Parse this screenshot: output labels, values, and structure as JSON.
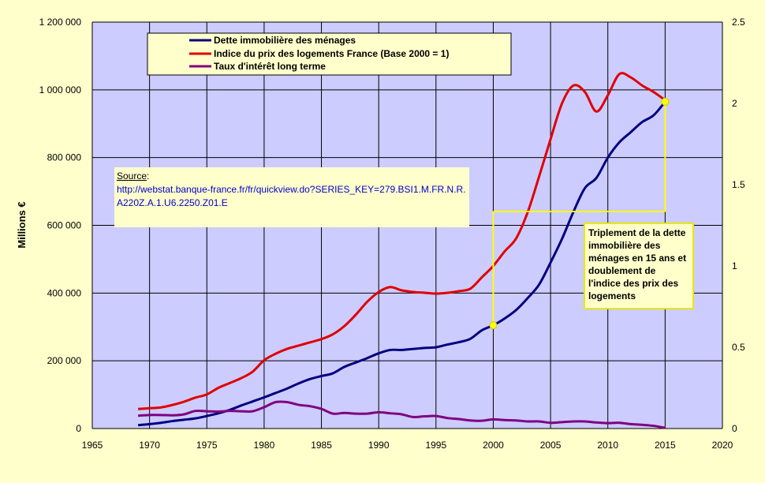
{
  "chart_data": {
    "type": "line",
    "ylabel": "Millions €",
    "xlim": [
      1965,
      2020
    ],
    "ylim_left": [
      0,
      1200000
    ],
    "ylim_right": [
      0,
      2.5
    ],
    "grid": true,
    "legend_position": "top-left",
    "x_ticks": [
      "1965",
      "1970",
      "1975",
      "1980",
      "1985",
      "1990",
      "1995",
      "2000",
      "2005",
      "2010",
      "2015",
      "2020"
    ],
    "y_ticks_left": [
      "0",
      "200 000",
      "400 000",
      "600 000",
      "800 000",
      "1 000 000",
      "1 200 000"
    ],
    "y_ticks_right": [
      "0",
      "0.5",
      "1",
      "1.5",
      "2",
      "2.5"
    ],
    "series": [
      {
        "name": "Dette immobilière des ménages",
        "color": "#000080",
        "axis": "left",
        "x": [
          1969,
          1970,
          1971,
          1972,
          1973,
          1974,
          1975,
          1976,
          1977,
          1978,
          1979,
          1980,
          1981,
          1982,
          1983,
          1984,
          1985,
          1986,
          1987,
          1988,
          1989,
          1990,
          1991,
          1992,
          1993,
          1994,
          1995,
          1996,
          1997,
          1998,
          1999,
          2000,
          2001,
          2002,
          2003,
          2004,
          2005,
          2006,
          2007,
          2008,
          2009,
          2010,
          2011,
          2012,
          2013,
          2014,
          2015
        ],
        "values": [
          10000,
          13000,
          17000,
          22000,
          26000,
          30000,
          37000,
          45000,
          55000,
          68000,
          80000,
          92000,
          105000,
          118000,
          133000,
          146000,
          155000,
          163000,
          182000,
          195000,
          208000,
          222000,
          232000,
          232000,
          235000,
          238000,
          240000,
          248000,
          255000,
          265000,
          290000,
          305000,
          325000,
          350000,
          385000,
          425000,
          490000,
          560000,
          640000,
          710000,
          740000,
          800000,
          845000,
          875000,
          905000,
          925000,
          965000
        ]
      },
      {
        "name": "Indice du prix des logements France (Base 2000 = 1)",
        "color": "#e00000",
        "axis": "right",
        "x": [
          1969,
          1970,
          1971,
          1972,
          1973,
          1974,
          1975,
          1976,
          1977,
          1978,
          1979,
          1980,
          1981,
          1982,
          1983,
          1984,
          1985,
          1986,
          1987,
          1988,
          1989,
          1990,
          1991,
          1992,
          1993,
          1994,
          1995,
          1996,
          1997,
          1998,
          1999,
          2000,
          2001,
          2002,
          2003,
          2004,
          2005,
          2006,
          2007,
          2008,
          2009,
          2010,
          2011,
          2012,
          2013,
          2014,
          2015
        ],
        "values": [
          0.12,
          0.125,
          0.13,
          0.145,
          0.165,
          0.19,
          0.21,
          0.25,
          0.28,
          0.31,
          0.35,
          0.42,
          0.46,
          0.49,
          0.51,
          0.53,
          0.55,
          0.58,
          0.63,
          0.7,
          0.78,
          0.84,
          0.87,
          0.85,
          0.84,
          0.835,
          0.83,
          0.835,
          0.845,
          0.86,
          0.93,
          1.0,
          1.09,
          1.17,
          1.33,
          1.55,
          1.78,
          2.0,
          2.11,
          2.07,
          1.95,
          2.05,
          2.18,
          2.16,
          2.11,
          2.07,
          2.02
        ]
      },
      {
        "name": "Taux d'intérêt long terme",
        "color": "#800080",
        "axis": "left",
        "x": [
          1969,
          1970,
          1971,
          1972,
          1973,
          1974,
          1975,
          1976,
          1977,
          1978,
          1979,
          1980,
          1981,
          1982,
          1983,
          1984,
          1985,
          1986,
          1987,
          1988,
          1989,
          1990,
          1991,
          1992,
          1993,
          1994,
          1995,
          1996,
          1997,
          1998,
          1999,
          2000,
          2001,
          2002,
          2003,
          2004,
          2005,
          2006,
          2007,
          2008,
          2009,
          2010,
          2011,
          2012,
          2013,
          2014,
          2015
        ],
        "values": [
          38000,
          40000,
          40000,
          39000,
          42000,
          52000,
          51000,
          50000,
          52000,
          51000,
          51000,
          63000,
          78000,
          78000,
          70000,
          66000,
          58000,
          44000,
          46000,
          44000,
          44000,
          48000,
          45000,
          42000,
          34000,
          36000,
          37000,
          31000,
          28000,
          24000,
          23000,
          27000,
          25000,
          24000,
          21000,
          21000,
          17000,
          19000,
          21000,
          21000,
          18000,
          16000,
          17000,
          13000,
          11000,
          8000,
          2000
        ]
      }
    ],
    "annotations": {
      "source_title": "Source",
      "source_colon": ":",
      "source_url": "http://webstat.banque-france.fr/fr/quickview.do?SERIES_KEY=279.BSI1.M.FR.N.R.A220Z.A.1.U6.2250.Z01.E",
      "note": "Triplement de la dette immobilière des ménages en 15 ans et doublement de l'indice des prix des logements",
      "marker_points": [
        {
          "x": 2000,
          "series": "Dette immobilière des ménages",
          "value": 305000
        },
        {
          "x": 2015,
          "series": "Dette immobilière des ménages",
          "value": 965000
        }
      ]
    }
  },
  "colors": {
    "page_background": "#ffffcc",
    "plot_background": "#ccccff",
    "grid": "#000000",
    "annotation_line": "#ffff00"
  }
}
